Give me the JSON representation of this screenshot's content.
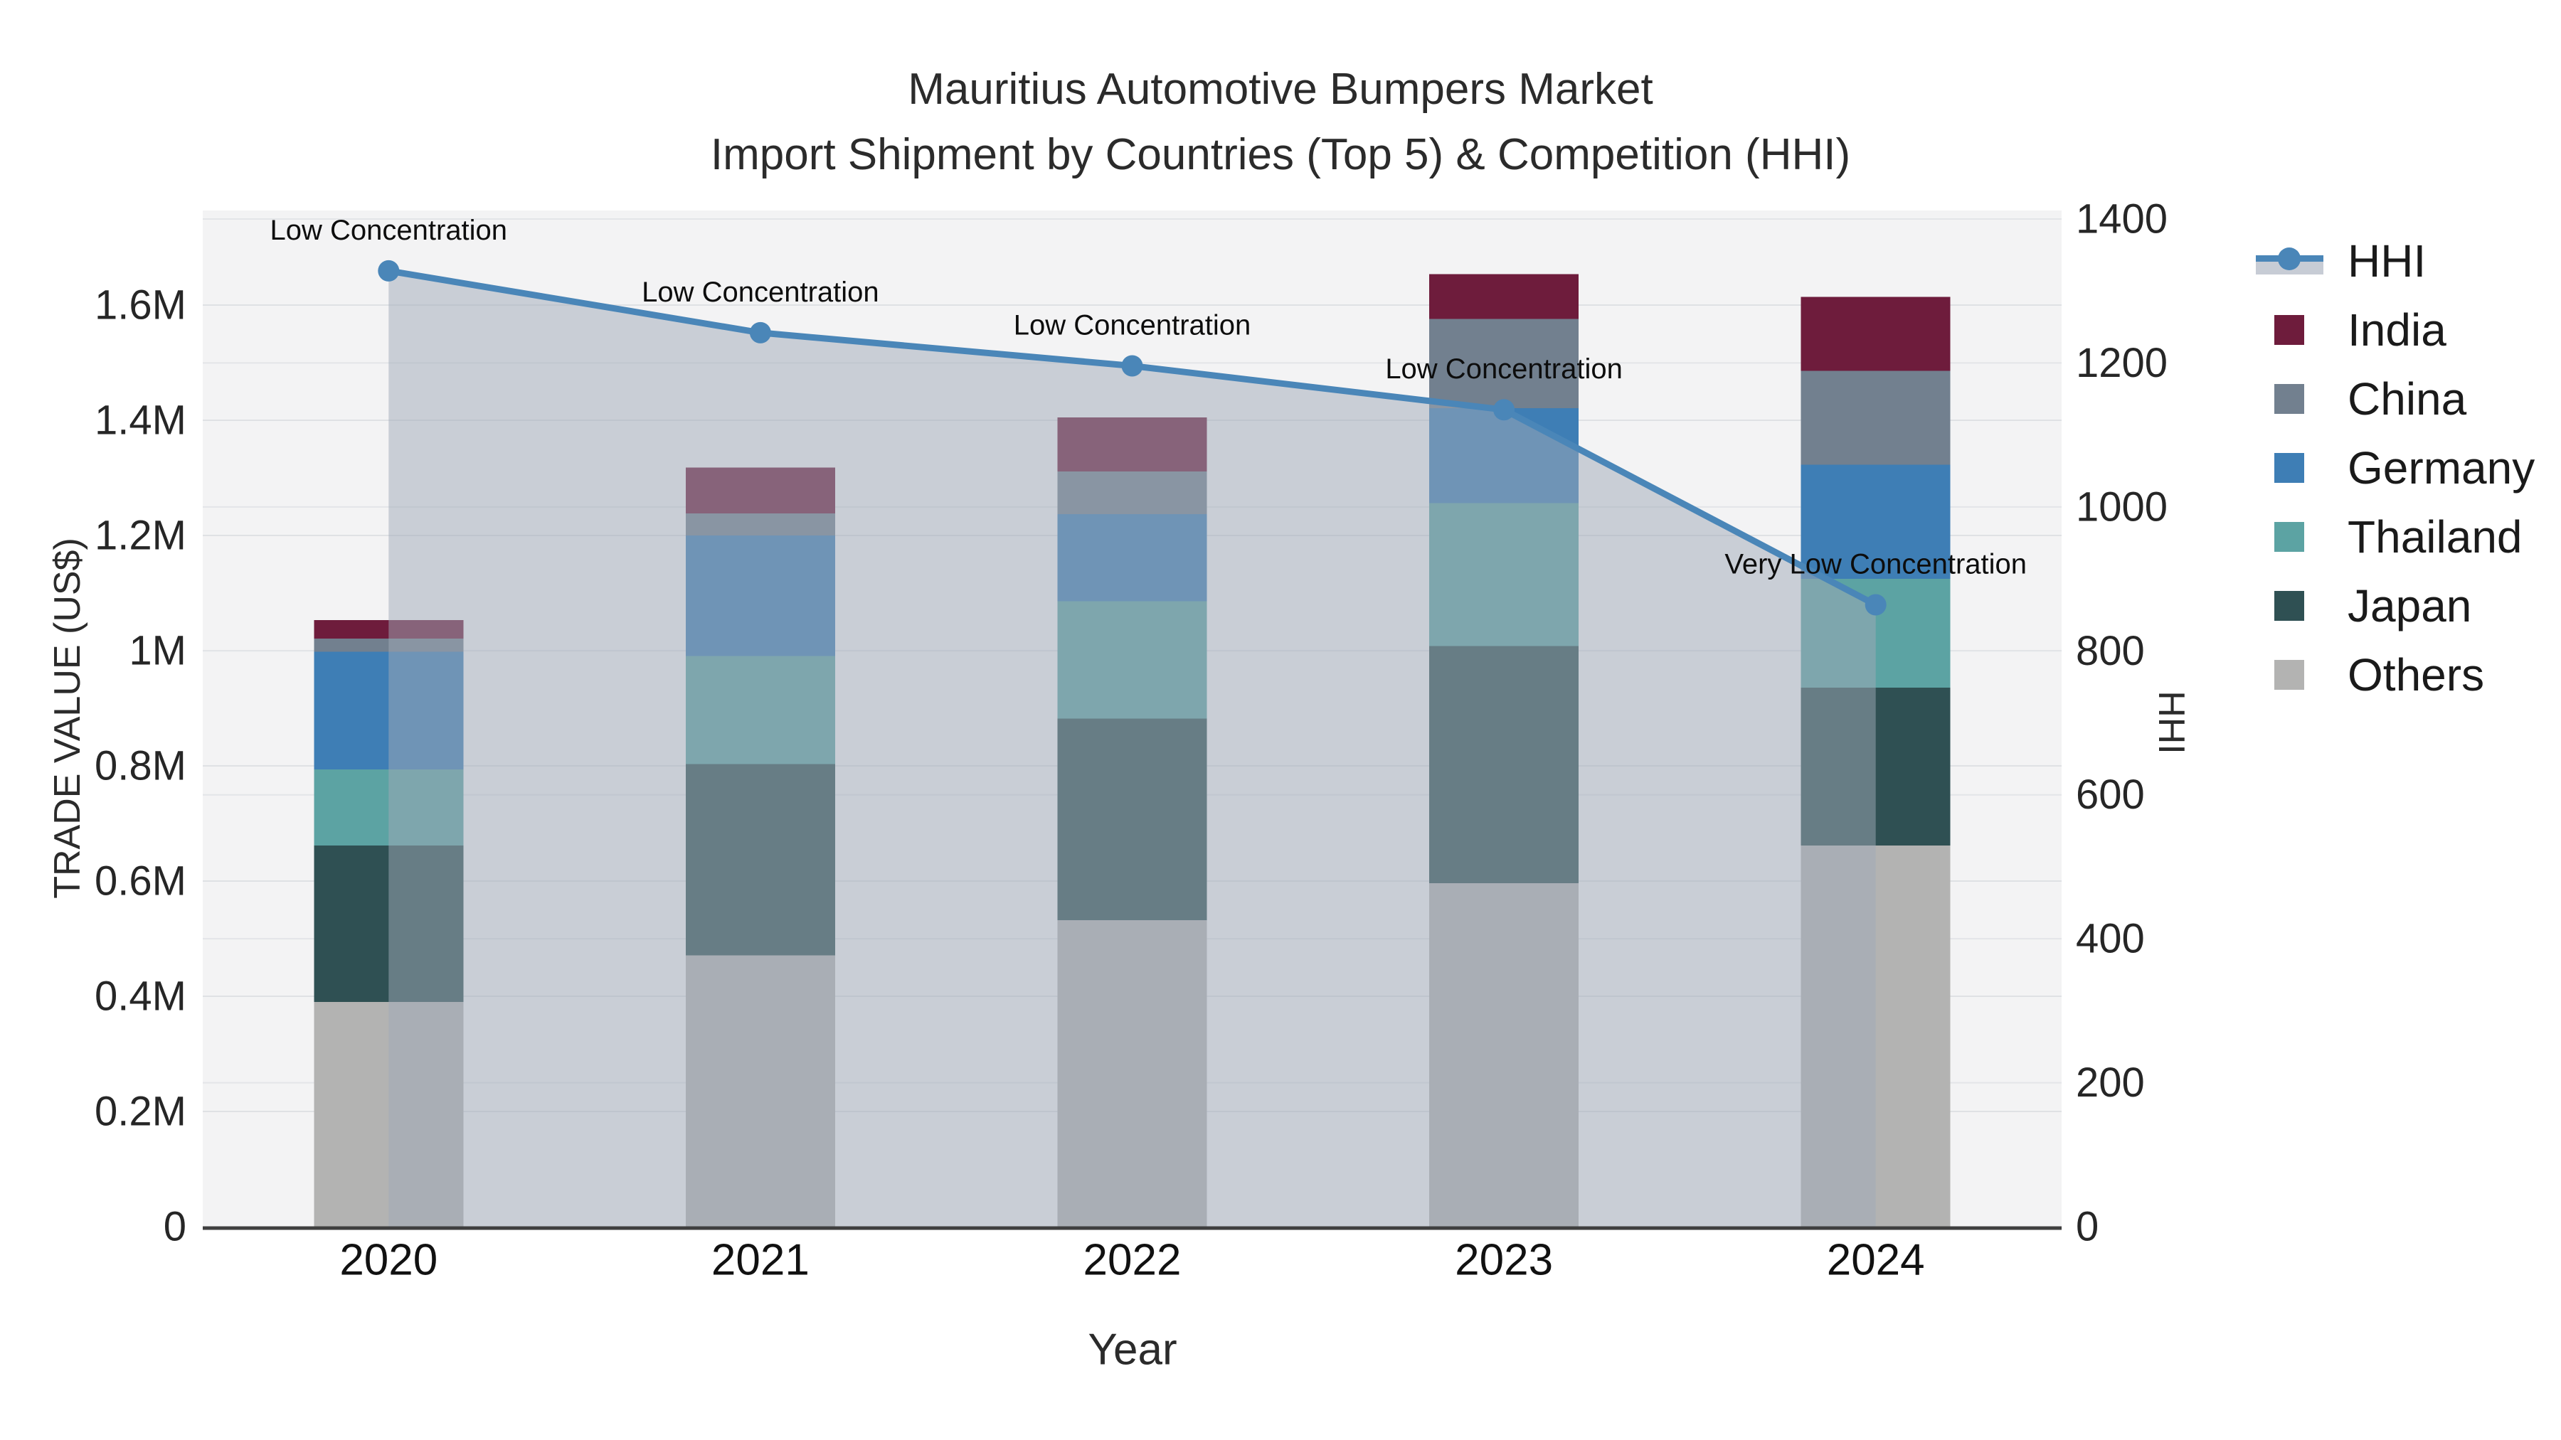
{
  "title": {
    "line1": "Mauritius Automotive Bumpers Market",
    "line2": "Import Shipment by Countries (Top 5) & Competition (HHI)"
  },
  "axes": {
    "x": {
      "title": "Year",
      "categories": [
        "2020",
        "2021",
        "2022",
        "2023",
        "2024"
      ]
    },
    "y_left": {
      "title": "TRADE VALUE (US$)",
      "tick_labels": [
        "0",
        "0.2M",
        "0.4M",
        "0.6M",
        "0.8M",
        "1M",
        "1.2M",
        "1.4M",
        "1.6M"
      ],
      "tick_values": [
        0,
        200000,
        400000,
        600000,
        800000,
        1000000,
        1200000,
        1400000,
        1600000
      ]
    },
    "y_right": {
      "title": "HHI",
      "tick_labels": [
        "0",
        "200",
        "400",
        "600",
        "800",
        "1000",
        "1200",
        "1400"
      ],
      "tick_values": [
        0,
        200,
        400,
        600,
        800,
        1000,
        1200,
        1400
      ]
    }
  },
  "legend": [
    {
      "label": "HHI",
      "color": "#4a86b8",
      "type": "line"
    },
    {
      "label": "India",
      "color": "#6e1c3c",
      "type": "swatch"
    },
    {
      "label": "China",
      "color": "#72808f",
      "type": "swatch"
    },
    {
      "label": "Germany",
      "color": "#3e7eb5",
      "type": "swatch"
    },
    {
      "label": "Thailand",
      "color": "#5ca3a3",
      "type": "swatch"
    },
    {
      "label": "Japan",
      "color": "#2f5053",
      "type": "swatch"
    },
    {
      "label": "Others",
      "color": "#b3b3b2",
      "type": "swatch"
    }
  ],
  "chart_data": {
    "type": "combo",
    "bar_type": "stacked-bar",
    "title": "Mauritius Automotive Bumpers Market — Import Shipment by Countries (Top 5) & Competition (HHI)",
    "xlabel": "Year",
    "ylabel_left": "TRADE VALUE (US$)",
    "ylabel_right": "HHI",
    "categories": [
      "2020",
      "2021",
      "2022",
      "2023",
      "2024"
    ],
    "series": [
      {
        "name": "Others",
        "axis": "left",
        "values": [
          390000,
          471000,
          532000,
          596000,
          662000
        ]
      },
      {
        "name": "Japan",
        "axis": "left",
        "values": [
          272000,
          332000,
          350000,
          412000,
          274000
        ]
      },
      {
        "name": "Thailand",
        "axis": "left",
        "values": [
          132000,
          188000,
          204000,
          248000,
          189000
        ]
      },
      {
        "name": "Germany",
        "axis": "left",
        "values": [
          204000,
          209000,
          151000,
          165000,
          198000
        ]
      },
      {
        "name": "China",
        "axis": "left",
        "values": [
          23000,
          38000,
          74000,
          155000,
          163000
        ]
      },
      {
        "name": "India",
        "axis": "left",
        "values": [
          32000,
          80000,
          94000,
          78000,
          128000
        ]
      }
    ],
    "stack_order_bottom_to_top": [
      "Others",
      "Japan",
      "Thailand",
      "Germany",
      "China",
      "India"
    ],
    "line_series": {
      "name": "HHI",
      "axis": "right",
      "values": [
        1328,
        1242,
        1196,
        1135,
        864
      ],
      "point_annotations": [
        "Low Concentration",
        "Low Concentration",
        "Low Concentration",
        "Low Concentration",
        "Very Low Concentration"
      ]
    },
    "ylim_left": [
      0,
      1770000
    ],
    "ylim_right": [
      0,
      1765
    ],
    "grid": true,
    "legend_position": "right"
  },
  "colors": {
    "hhi_line": "#4a86b8",
    "hhi_area_fill": "rgba(159,169,184,0.5)",
    "plot_background": "#f3f3f4",
    "gridline_left": "#dfe1e4",
    "gridline_right": "#e3e5e8",
    "axis_line": "#3f3f3f",
    "tick_text": "#262626",
    "annotation_text": "#0d0d0d"
  }
}
